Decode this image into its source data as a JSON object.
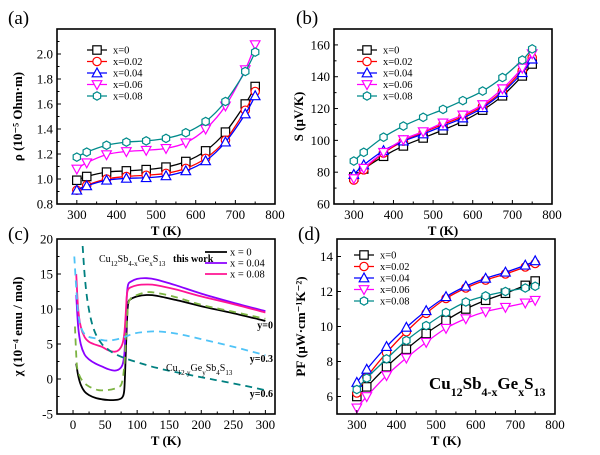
{
  "chart_data": [
    {
      "panel": "(a)",
      "type": "line",
      "xlabel": "T (K)",
      "ylabel": "ρ (10⁻⁵ Ohm·m)",
      "xlim": [
        250,
        800
      ],
      "ylim": [
        0.8,
        2.2
      ],
      "xticks": [
        300,
        400,
        500,
        600,
        700,
        800
      ],
      "yticks": [
        0.8,
        1.0,
        1.2,
        1.4,
        1.6,
        1.8,
        2.0
      ],
      "ytick_labels": [
        "0.8",
        "1.0",
        "1.2",
        "1.4",
        "1.6",
        "1.8",
        "2.0"
      ],
      "legend_position": "top-left",
      "x": [
        300,
        325,
        375,
        425,
        475,
        525,
        575,
        625,
        675,
        725,
        750
      ],
      "series": [
        {
          "name": "x=0",
          "color": "#000000",
          "marker": "square",
          "values": [
            0.99,
            1.02,
            1.055,
            1.065,
            1.075,
            1.095,
            1.14,
            1.225,
            1.375,
            1.6,
            1.74
          ]
        },
        {
          "name": "x=0.02",
          "color": "#ff0000",
          "marker": "circle",
          "values": [
            0.91,
            0.95,
            1.0,
            1.02,
            1.03,
            1.045,
            1.085,
            1.165,
            1.31,
            1.55,
            1.7
          ]
        },
        {
          "name": "x=0.04",
          "color": "#0000ff",
          "marker": "triangle-up",
          "values": [
            0.91,
            0.945,
            0.99,
            1.005,
            1.01,
            1.025,
            1.065,
            1.145,
            1.295,
            1.52,
            1.665
          ]
        },
        {
          "name": "x=0.06",
          "color": "#ff00ff",
          "marker": "triangle-down",
          "values": [
            1.08,
            1.13,
            1.195,
            1.22,
            1.23,
            1.245,
            1.29,
            1.4,
            1.585,
            1.875,
            2.075
          ]
        },
        {
          "name": "x=0.08",
          "color": "#008b8b",
          "marker": "hexagon",
          "values": [
            1.175,
            1.215,
            1.27,
            1.295,
            1.305,
            1.325,
            1.37,
            1.46,
            1.62,
            1.86,
            2.015
          ]
        }
      ]
    },
    {
      "panel": "(b)",
      "type": "line",
      "xlabel": "T (K)",
      "ylabel": "S (μV/K)",
      "xlim": [
        250,
        800
      ],
      "ylim": [
        60,
        170
      ],
      "xticks": [
        300,
        400,
        500,
        600,
        700,
        800
      ],
      "yticks": [
        60,
        80,
        100,
        120,
        140,
        160
      ],
      "ytick_labels": [
        "60",
        "80",
        "100",
        "120",
        "140",
        "160"
      ],
      "legend_position": "top-left",
      "x": [
        300,
        325,
        375,
        425,
        475,
        525,
        575,
        625,
        675,
        725,
        750
      ],
      "series": [
        {
          "name": "x=0",
          "color": "#000000",
          "marker": "square",
          "values": [
            77,
            82,
            90,
            96.5,
            101.5,
            106.5,
            112,
            119,
            128,
            140.5,
            148
          ]
        },
        {
          "name": "x=0.02",
          "color": "#ff0000",
          "marker": "circle",
          "values": [
            75,
            81.5,
            92,
            99.5,
            105,
            110,
            115,
            121.5,
            131,
            144,
            152
          ]
        },
        {
          "name": "x=0.04",
          "color": "#0000ff",
          "marker": "triangle-up",
          "values": [
            78.5,
            84.5,
            93.5,
            99.5,
            104,
            109,
            114,
            120.5,
            130,
            142.5,
            151
          ]
        },
        {
          "name": "x=0.06",
          "color": "#ff00ff",
          "marker": "triangle-down",
          "values": [
            76,
            82.5,
            92.5,
            100.5,
            105.5,
            111,
            116,
            122.5,
            132.5,
            145.5,
            154.5
          ]
        },
        {
          "name": "x=0.08",
          "color": "#008b8b",
          "marker": "hexagon",
          "values": [
            87,
            92.5,
            102,
            109,
            114.5,
            119.5,
            125,
            131,
            139.5,
            150.5,
            157.5
          ]
        }
      ]
    },
    {
      "panel": "(c)",
      "type": "line",
      "xlabel": "T (K)",
      "ylabel": "χ (10⁻⁴ emu / mol)",
      "xlim": [
        -25,
        315
      ],
      "ylim": [
        -5,
        20
      ],
      "xticks": [
        0,
        50,
        100,
        150,
        200,
        250,
        300
      ],
      "yticks": [
        -5,
        0,
        5,
        10,
        15,
        20
      ],
      "ytick_labels": [
        "-5",
        "0",
        "5",
        "10",
        "15",
        "20"
      ],
      "legend_position": "top-right",
      "annotations": {
        "this_work": {
          "base": "Cu",
          "s1": "12",
          "m1": "Sb",
          "s2": "4-x",
          "m2": "Ge",
          "s3": "x",
          "m3": "S",
          "s4": "13",
          "suffix": "this work"
        },
        "ref": {
          "base": "Cu",
          "s1": "12-y",
          "m1": "Ge",
          "s2": "y",
          "m2": "Sb",
          "s3": "4",
          "m3": "S",
          "s4": "13"
        },
        "y_labels": [
          "y=0",
          "y=0.3",
          "y=0.6"
        ]
      },
      "series": [
        {
          "name": "x = 0",
          "color": "#000000",
          "style": "solid",
          "legend": true,
          "x": [
            5,
            8,
            12,
            18,
            25,
            35,
            45,
            55,
            65,
            72,
            77,
            80,
            82,
            84,
            86,
            90,
            100,
            115,
            130,
            160,
            200,
            250,
            300
          ],
          "values": [
            2.2,
            0.5,
            -0.8,
            -1.8,
            -2.3,
            -2.7,
            -2.9,
            -3.0,
            -3.0,
            -2.9,
            -2.6,
            -1.5,
            3,
            8,
            10.8,
            11.4,
            11.8,
            12.0,
            11.9,
            11.3,
            10.4,
            9.4,
            8.3
          ]
        },
        {
          "name": "x = 0.04",
          "color": "#8b00ff",
          "style": "solid",
          "legend": true,
          "x": [
            5,
            8,
            12,
            18,
            25,
            35,
            45,
            55,
            65,
            72,
            77,
            80,
            82,
            84,
            86,
            90,
            100,
            115,
            130,
            160,
            200,
            250,
            300
          ],
          "values": [
            12,
            7.5,
            5.0,
            3.5,
            2.8,
            2.2,
            1.8,
            1.4,
            1.2,
            1.4,
            2.0,
            3.5,
            7,
            12,
            13.5,
            13.9,
            14.3,
            14.4,
            14.2,
            13.4,
            12.2,
            10.9,
            9.7
          ]
        },
        {
          "name": "x = 0.08",
          "color": "#ff1493",
          "style": "solid",
          "legend": true,
          "x": [
            5,
            8,
            12,
            18,
            25,
            35,
            45,
            55,
            65,
            72,
            77,
            80,
            82,
            84,
            86,
            90,
            100,
            115,
            130,
            160,
            200,
            250,
            300
          ],
          "values": [
            15,
            10,
            7.5,
            6.0,
            5.3,
            4.9,
            4.6,
            4.1,
            3.9,
            4.2,
            5.0,
            6.5,
            9,
            12,
            12.8,
            13.1,
            13.4,
            13.5,
            13.4,
            12.8,
            11.8,
            10.7,
            9.5
          ]
        },
        {
          "name": "y=0",
          "color": "#7cb342",
          "style": "dashed",
          "legend": false,
          "x": [
            3,
            6,
            10,
            15,
            22,
            30,
            40,
            50,
            60,
            70,
            76,
            80,
            83,
            86,
            90,
            100,
            115,
            130,
            160,
            200,
            250,
            300
          ],
          "values": [
            7.5,
            2,
            0.5,
            -0.3,
            -0.9,
            -1.3,
            -1.6,
            -1.6,
            -1.5,
            -1.2,
            -0.6,
            2,
            7,
            10.5,
            11.5,
            12.0,
            12.4,
            12.3,
            11.7,
            10.6,
            9.6,
            8.6
          ]
        },
        {
          "name": "y=0.3",
          "color": "#4fc3f7",
          "style": "dashed",
          "legend": false,
          "x": [
            2,
            5,
            8,
            12,
            18,
            25,
            35,
            50,
            65,
            80,
            95,
            110,
            130,
            160,
            200,
            250,
            300
          ],
          "values": [
            17.5,
            13,
            9.5,
            7.5,
            6.4,
            6.0,
            5.8,
            5.5,
            5.6,
            6.0,
            6.5,
            6.7,
            6.8,
            6.5,
            5.7,
            4.6,
            3.4
          ]
        },
        {
          "name": "y=0.6",
          "color": "#008080",
          "style": "dashed",
          "legend": false,
          "x": [
            15,
            18,
            22,
            28,
            35,
            45,
            55,
            65,
            80,
            100,
            130,
            170,
            220,
            270,
            300
          ],
          "values": [
            19,
            15,
            11.5,
            8.5,
            6.5,
            5.0,
            4.2,
            3.6,
            3.0,
            2.4,
            1.6,
            0.8,
            -0.1,
            -1.0,
            -1.6
          ]
        }
      ]
    },
    {
      "panel": "(d)",
      "type": "line",
      "xlabel": "T (K)",
      "ylabel": "PF (μW·cm⁻¹K⁻²)",
      "xlim": [
        250,
        800
      ],
      "ylim": [
        5,
        15
      ],
      "xticks": [
        300,
        400,
        500,
        600,
        700,
        800
      ],
      "yticks": [
        6,
        8,
        10,
        12,
        14
      ],
      "ytick_labels": [
        "6",
        "8",
        "10",
        "12",
        "14"
      ],
      "legend_position": "top-left",
      "annotation": {
        "base": "Cu",
        "s1": "12",
        "m1": "Sb",
        "s2": "4-x",
        "m2": "Ge",
        "s3": "x",
        "m3": "S",
        "s4": "13"
      },
      "x": [
        300,
        325,
        375,
        425,
        475,
        525,
        575,
        625,
        675,
        725,
        750
      ],
      "series": [
        {
          "name": "x=0",
          "color": "#000000",
          "marker": "square",
          "values": [
            6.0,
            6.55,
            7.7,
            8.7,
            9.6,
            10.35,
            11.0,
            11.5,
            11.9,
            12.35,
            12.6
          ]
        },
        {
          "name": "x=0.02",
          "color": "#ff0000",
          "marker": "circle",
          "values": [
            6.2,
            7.1,
            8.5,
            9.7,
            10.75,
            11.6,
            12.2,
            12.65,
            13.0,
            13.4,
            13.6
          ]
        },
        {
          "name": "x=0.04",
          "color": "#0000ff",
          "marker": "triangle-up",
          "values": [
            6.8,
            7.55,
            8.85,
            9.95,
            10.9,
            11.7,
            12.3,
            12.75,
            13.1,
            13.5,
            13.75
          ]
        },
        {
          "name": "x=0.06",
          "color": "#ff00ff",
          "marker": "triangle-down",
          "values": [
            5.35,
            6.0,
            7.2,
            8.2,
            9.1,
            9.9,
            10.45,
            10.85,
            11.1,
            11.35,
            11.5
          ]
        },
        {
          "name": "x=0.08",
          "color": "#008b8b",
          "marker": "hexagon",
          "values": [
            6.4,
            7.05,
            8.15,
            9.2,
            10.05,
            10.8,
            11.4,
            11.75,
            12.0,
            12.2,
            12.3
          ]
        }
      ]
    }
  ]
}
